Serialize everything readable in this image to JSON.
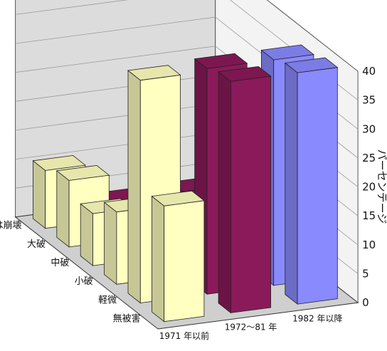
{
  "chart_data": {
    "type": "bar",
    "subtype": "3d-bar",
    "title": "",
    "ylabel": "パーセンテージ",
    "ylim": [
      0,
      40
    ],
    "yticks": [
      0,
      5,
      10,
      15,
      20,
      25,
      30,
      35,
      40
    ],
    "grid": true,
    "categories": [
      "無被害",
      "軽微",
      "小破",
      "中破",
      "大破",
      "倒壊又は崩壊"
    ],
    "series": [
      {
        "name": "1971 年以前",
        "color": "#ffffc0",
        "values": [
          20.0,
          38.5,
          12.5,
          9.0,
          11.5,
          10.0
        ]
      },
      {
        "name": "1972～81 年",
        "color": "#8b1a5a",
        "values": [
          40.0,
          39.0,
          14.5,
          5.0,
          4.0,
          3.0
        ]
      },
      {
        "name": "1982 年以降",
        "color": "#8a8aff",
        "values": [
          40.0,
          39.0,
          17.0,
          4.5,
          4.5,
          1.5
        ]
      }
    ]
  }
}
